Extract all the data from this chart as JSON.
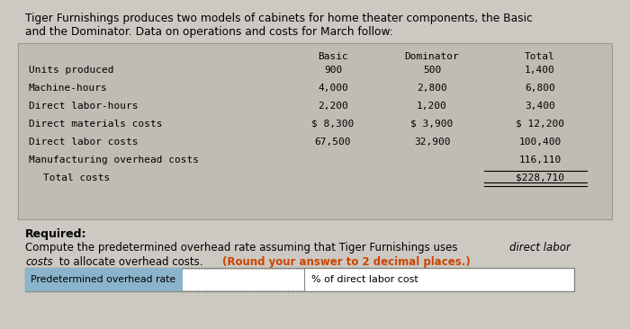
{
  "bg_color": "#ccc9c2",
  "title_line1": "Tiger Furnishings produces two models of cabinets for home theater components, the Basic",
  "title_line2": "and the Dominator. Data on operations and costs for March follow:",
  "table_bg": "#c0bcb4",
  "header_row": [
    "Basic",
    "Dominator",
    "Total"
  ],
  "rows": [
    [
      "Units produced",
      "900",
      "500",
      "1,400"
    ],
    [
      "Machine-hours",
      "4,000",
      "2,800",
      "6,800"
    ],
    [
      "Direct labor-hours",
      "2,200",
      "1,200",
      "3,400"
    ],
    [
      "Direct materials costs",
      "$ 8,300",
      "$ 3,900",
      "$ 12,200"
    ],
    [
      "Direct labor costs",
      "67,500",
      "32,900",
      "100,400"
    ],
    [
      "Manufacturing overhead costs",
      "",
      "",
      "116,110"
    ],
    [
      "Total costs",
      "",
      "",
      "$228,710"
    ]
  ],
  "required_label": "Required:",
  "req_line1_normal": "Compute the predetermined overhead rate assuming that Tiger Furnishings uses ",
  "req_line1_italic": "direct labor",
  "req_line2_italic": "costs",
  "req_line2_normal": " to allocate overhead costs. ",
  "req_line2_bold_orange": "(Round your answer to 2 decimal places.)",
  "orange_color": "#cc4400",
  "input_label": "Predetermined overhead rate",
  "input_suffix": "% of direct labor cost",
  "input_label_bg": "#8ab4cc",
  "font_mono": "DejaVu Sans Mono",
  "font_sans": "DejaVu Sans"
}
